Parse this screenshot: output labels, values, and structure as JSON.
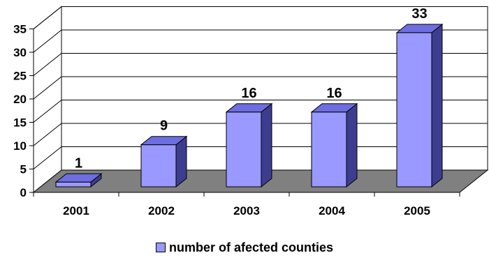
{
  "chart_data": {
    "type": "bar",
    "categories": [
      "2001",
      "2002",
      "2003",
      "2004",
      "2005"
    ],
    "series": [
      {
        "name": "number of afected counties",
        "values": [
          1,
          9,
          16,
          16,
          33
        ]
      }
    ],
    "ylim": [
      0,
      35
    ],
    "yticks": [
      0,
      5,
      10,
      15,
      20,
      25,
      30,
      35
    ],
    "grid": true,
    "legend_position": "bottom",
    "data_labels": true,
    "style": "3d",
    "colors": {
      "bar_front": "#9999ff",
      "bar_top": "#6e6ee0",
      "bar_side": "#3d3d8f",
      "wall": "#ffffff",
      "floor": "#808080"
    }
  }
}
